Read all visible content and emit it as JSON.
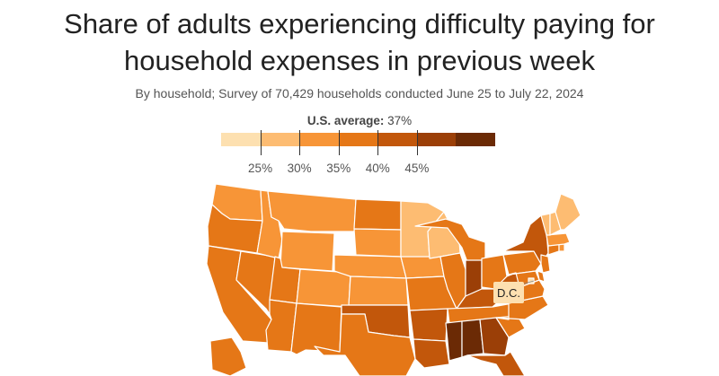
{
  "title_line1": "Share of adults experiencing difficulty paying for",
  "title_line2": "household expenses in previous week",
  "subtitle": "By household; Survey of 70,429 households conducted June 25 to July 22, 2024",
  "average_label": "U.S. average:",
  "average_value": "37%",
  "legend": {
    "colors": [
      "#fde0b0",
      "#fdbc72",
      "#f79537",
      "#e57717",
      "#c2570b",
      "#9b3f07",
      "#6b2a05"
    ],
    "labels": [
      "25%",
      "30%",
      "35%",
      "40%",
      "45%"
    ]
  },
  "dc_label": "D.C.",
  "state_colors": {
    "WA": "#f79537",
    "OR": "#e57717",
    "CA": "#e57717",
    "NV": "#e57717",
    "ID": "#f79537",
    "MT": "#f79537",
    "WY": "#f79537",
    "UT": "#e57717",
    "AZ": "#e57717",
    "CO": "#f79537",
    "NM": "#e57717",
    "ND": "#e57717",
    "SD": "#f79537",
    "NE": "#f79537",
    "KS": "#f79537",
    "OK": "#c2570b",
    "TX": "#e57717",
    "MN": "#fdbc72",
    "IA": "#f79537",
    "MO": "#e57717",
    "AR": "#c2570b",
    "LA": "#c2570b",
    "WI": "#fdbc72",
    "IL": "#e57717",
    "MI": "#e57717",
    "IN": "#9b3f07",
    "OH": "#e57717",
    "KY": "#c2570b",
    "TN": "#e57717",
    "MS": "#6b2a05",
    "AL": "#6b2a05",
    "GA": "#9b3f07",
    "FL": "#c2570b",
    "SC": "#e57717",
    "NC": "#e57717",
    "VA": "#e57717",
    "WV": "#c2570b",
    "PA": "#e57717",
    "NY": "#c2570b",
    "VT": "#fdbc72",
    "NH": "#fdbc72",
    "ME": "#fdbc72",
    "MA": "#f79537",
    "RI": "#f79537",
    "CT": "#e57717",
    "NJ": "#e57717",
    "DE": "#e57717",
    "MD": "#e57717",
    "AK": "#e57717",
    "DC": "#fde0b0"
  }
}
